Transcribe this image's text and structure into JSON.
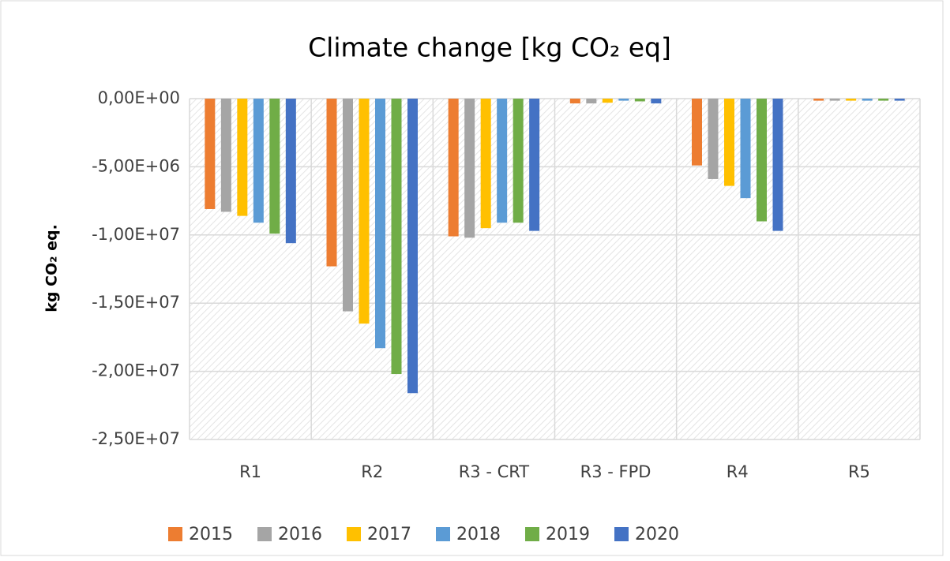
{
  "chart_data": {
    "type": "bar",
    "title": "Climate change [kg CO₂ eq]",
    "y_label": "kg CO₂ eq.",
    "categories": [
      "R1",
      "R2",
      "R3 - CRT",
      "R3 - FPD",
      "R4",
      "R5"
    ],
    "series": [
      {
        "name": "2015",
        "color": "#ed7d31",
        "values": [
          -8100000,
          -12300000,
          -10100000,
          -350000,
          -4900000,
          -150000
        ]
      },
      {
        "name": "2016",
        "color": "#a5a5a5",
        "values": [
          -8300000,
          -15600000,
          -10200000,
          -350000,
          -5900000,
          -150000
        ]
      },
      {
        "name": "2017",
        "color": "#ffc000",
        "values": [
          -8600000,
          -16500000,
          -9500000,
          -300000,
          -6400000,
          -150000
        ]
      },
      {
        "name": "2018",
        "color": "#5b9bd5",
        "values": [
          -9100000,
          -18300000,
          -9100000,
          -150000,
          -7300000,
          -150000
        ]
      },
      {
        "name": "2019",
        "color": "#70ad47",
        "values": [
          -9900000,
          -20200000,
          -9100000,
          -200000,
          -9000000,
          -150000
        ]
      },
      {
        "name": "2020",
        "color": "#4472c4",
        "values": [
          -10600000,
          -21600000,
          -9700000,
          -350000,
          -9700000,
          -150000
        ]
      }
    ],
    "ylim": [
      -25000000,
      0
    ],
    "yticks": [
      {
        "value": 0,
        "label": "0,00E+00"
      },
      {
        "value": -5000000,
        "label": "-5,00E+06"
      },
      {
        "value": -10000000,
        "label": "-1,00E+07"
      },
      {
        "value": -15000000,
        "label": "-1,50E+07"
      },
      {
        "value": -20000000,
        "label": "-2,00E+07"
      },
      {
        "value": -25000000,
        "label": "-2,50E+07"
      }
    ],
    "grid": true,
    "legend": "bottom"
  }
}
